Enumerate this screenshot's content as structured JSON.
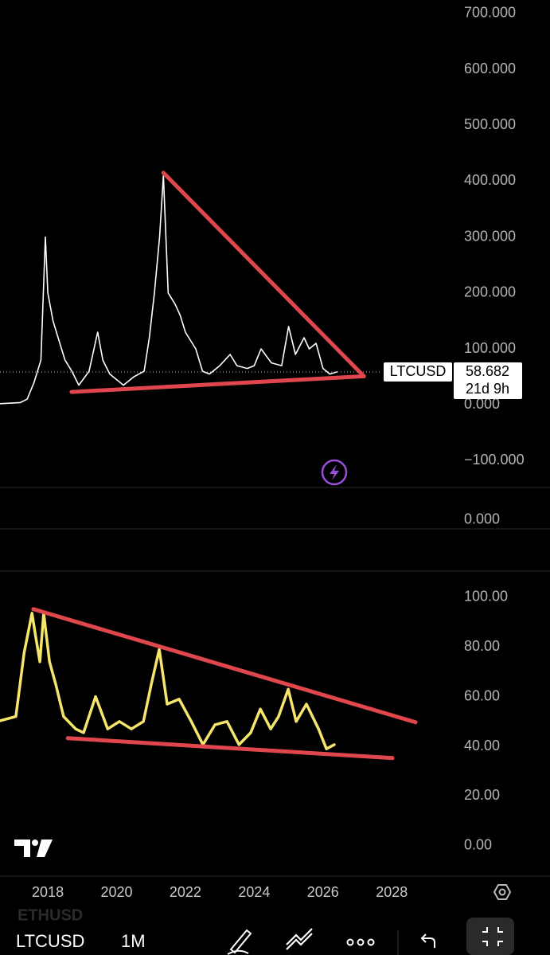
{
  "chart_data": [
    {
      "type": "line",
      "xlim": [
        2016.61,
        2029.8
      ],
      "ylim": [
        -145,
        724
      ],
      "yticks": [
        {
          "value": 700,
          "label": "700.000"
        },
        {
          "value": 600,
          "label": "600.000"
        },
        {
          "value": 500,
          "label": "500.000"
        },
        {
          "value": 400,
          "label": "400.000"
        },
        {
          "value": 300,
          "label": "300.000"
        },
        {
          "value": 200,
          "label": "200.000"
        },
        {
          "value": 100,
          "label": "100.000"
        },
        {
          "value": 0,
          "label": "0.000"
        },
        {
          "value": -100,
          "label": "−100.000"
        }
      ],
      "series": [
        {
          "color": "#ffffff",
          "x": [
            2016.61,
            2017.2,
            2017.4,
            2017.6,
            2017.8,
            2017.93,
            2018.0,
            2018.15,
            2018.3,
            2018.5,
            2018.7,
            2018.9,
            2019.2,
            2019.45,
            2019.6,
            2019.8,
            2020.0,
            2020.2,
            2020.5,
            2020.8,
            2020.95,
            2021.1,
            2021.25,
            2021.36,
            2021.5,
            2021.7,
            2021.85,
            2022.0,
            2022.3,
            2022.5,
            2022.7,
            2023.0,
            2023.3,
            2023.5,
            2023.8,
            2024.0,
            2024.2,
            2024.5,
            2024.8,
            2025.0,
            2025.2,
            2025.45,
            2025.6,
            2025.8,
            2026.0,
            2026.2,
            2026.4
          ],
          "values": [
            2,
            4,
            10,
            40,
            80,
            300,
            200,
            150,
            120,
            80,
            60,
            35,
            60,
            130,
            80,
            55,
            45,
            35,
            50,
            60,
            120,
            200,
            300,
            410,
            200,
            180,
            160,
            130,
            100,
            60,
            55,
            70,
            90,
            70,
            65,
            70,
            100,
            75,
            70,
            140,
            90,
            120,
            100,
            110,
            65,
            55,
            58.682
          ]
        }
      ],
      "trendlines": [
        {
          "color": "#e0474c",
          "x": [
            2021.36,
            2027.19
          ],
          "values": [
            415,
            51
          ]
        },
        {
          "color": "#e0474c",
          "x": [
            2018.69,
            2027.19
          ],
          "values": [
            23,
            51
          ]
        }
      ],
      "last_price": {
        "symbol": "LTCUSD",
        "value": 58.682,
        "countdown": "21d 9h"
      }
    },
    {
      "type": "line",
      "xlim": [
        2016.61,
        2029.8
      ],
      "ylim": [
        -1.22,
        0.78
      ],
      "yticks": [
        {
          "value": 0,
          "label": "0.000"
        }
      ],
      "series": []
    },
    {
      "type": "line",
      "xlim": [
        2016.61,
        2029.8
      ],
      "ylim": [
        -12.2,
        110.5
      ],
      "xticks": [
        2018,
        2020,
        2022,
        2024,
        2026,
        2028
      ],
      "yticks": [
        {
          "value": 100,
          "label": "100.00"
        },
        {
          "value": 80,
          "label": "80.00"
        },
        {
          "value": 60,
          "label": "60.00"
        },
        {
          "value": 40,
          "label": "40.00"
        },
        {
          "value": 20,
          "label": "20.00"
        },
        {
          "value": 0,
          "label": "0.00"
        }
      ],
      "series": [
        {
          "color": "#f6e56b",
          "x": [
            2016.61,
            2017.07,
            2017.31,
            2017.54,
            2017.65,
            2017.77,
            2017.88,
            2018.05,
            2018.23,
            2018.46,
            2018.81,
            2019.04,
            2019.39,
            2019.74,
            2020.08,
            2020.43,
            2020.78,
            2021.01,
            2021.24,
            2021.47,
            2021.82,
            2022.17,
            2022.51,
            2022.86,
            2023.21,
            2023.56,
            2023.9,
            2024.18,
            2024.48,
            2024.71,
            2024.99,
            2025.22,
            2025.52,
            2025.87,
            2026.1,
            2026.33
          ],
          "values": [
            50.3,
            52,
            77.6,
            93.6,
            84,
            74,
            93.6,
            74,
            65,
            52,
            47,
            45.5,
            60,
            47,
            50,
            47,
            50,
            65,
            79,
            57,
            59,
            50,
            40.7,
            48.7,
            50,
            40.7,
            45.5,
            55,
            47,
            52,
            63,
            50,
            57,
            47,
            39,
            40.7
          ]
        }
      ],
      "trendlines": [
        {
          "color": "#e0474c",
          "x": [
            2017.58,
            2028.69
          ],
          "values": [
            95.2,
            49.7
          ]
        },
        {
          "color": "#e0474c",
          "x": [
            2018.58,
            2028.02
          ],
          "values": [
            43.3,
            35.3
          ]
        }
      ]
    }
  ],
  "toolbar": {
    "faded_symbol": "ETHUSD",
    "symbol": "LTCUSD",
    "interval": "1M"
  }
}
